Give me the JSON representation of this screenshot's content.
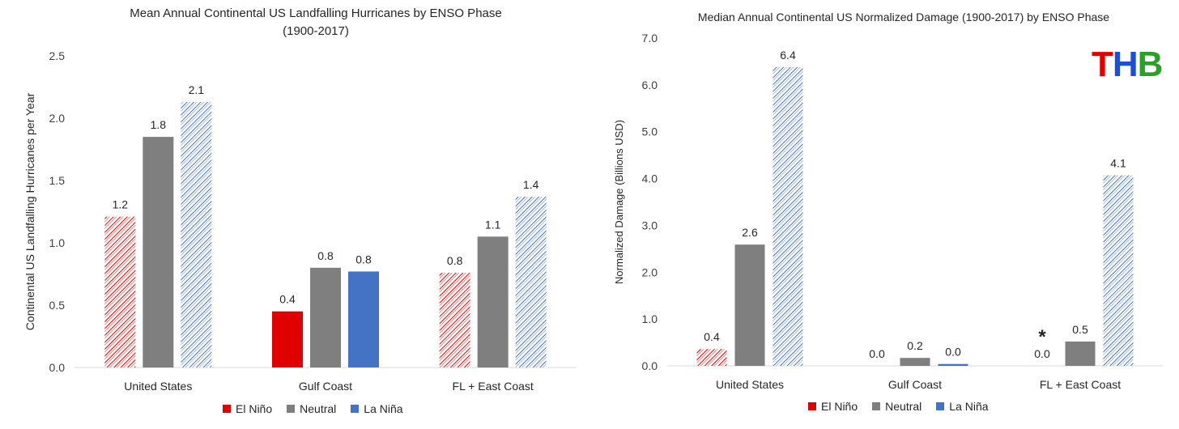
{
  "colors": {
    "el_nino": "#e00000",
    "neutral": "#7f7f7f",
    "la_nina": "#4472c4"
  },
  "legend": [
    "El Niño",
    "Neutral",
    "La Niña"
  ],
  "logo": {
    "t": "T",
    "h": "H",
    "b": "B"
  },
  "chart_data": [
    {
      "type": "bar",
      "title": "Mean Annual Continental US Landfalling Hurricanes by ENSO Phase\n(1900-2017)",
      "ylabel": "Continental US Landfalling Hurricanes per Year",
      "xlabel": "",
      "ylim": [
        0,
        2.5
      ],
      "yticks": [
        "0.0",
        "0.5",
        "1.0",
        "1.5",
        "2.0",
        "2.5"
      ],
      "categories": [
        "United States",
        "Gulf Coast",
        "FL + East Coast"
      ],
      "series": [
        {
          "name": "El Niño",
          "values": [
            1.21,
            0.45,
            0.76
          ],
          "labels": [
            "1.2",
            "0.4",
            "0.8"
          ],
          "hatched": [
            true,
            false,
            true
          ]
        },
        {
          "name": "Neutral",
          "values": [
            1.85,
            0.8,
            1.05
          ],
          "labels": [
            "1.8",
            "0.8",
            "1.1"
          ],
          "hatched": [
            false,
            false,
            false
          ]
        },
        {
          "name": "La Niña",
          "values": [
            2.13,
            0.77,
            1.37
          ],
          "labels": [
            "2.1",
            "0.8",
            "1.4"
          ],
          "hatched": [
            true,
            false,
            true
          ]
        }
      ],
      "legend_position": "bottom",
      "grid": false
    },
    {
      "type": "bar",
      "title": "Median Annual Continental US Normalized Damage (1900-2017) by ENSO Phase",
      "ylabel": "Normalized Damage (Billions USD)",
      "xlabel": "",
      "ylim": [
        0,
        7
      ],
      "yticks": [
        "0.0",
        "1.0",
        "2.0",
        "3.0",
        "4.0",
        "5.0",
        "6.0",
        "7.0"
      ],
      "categories": [
        "United States",
        "Gulf Coast",
        "FL + East Coast"
      ],
      "series": [
        {
          "name": "El Niño",
          "values": [
            0.36,
            0.0,
            0.0
          ],
          "labels": [
            "0.4",
            "0.0",
            "0.0"
          ],
          "hatched": [
            true,
            true,
            true
          ]
        },
        {
          "name": "Neutral",
          "values": [
            2.59,
            0.17,
            0.52
          ],
          "labels": [
            "2.6",
            "0.2",
            "0.5"
          ],
          "hatched": [
            false,
            false,
            false
          ]
        },
        {
          "name": "La Niña",
          "values": [
            6.38,
            0.04,
            4.07
          ],
          "labels": [
            "6.4",
            "0.0",
            "4.1"
          ],
          "hatched": [
            true,
            false,
            true
          ]
        }
      ],
      "annotations": [
        {
          "text": "*",
          "category": "FL + East Coast",
          "series": "El Niño"
        }
      ],
      "legend_position": "bottom",
      "grid": false
    }
  ]
}
